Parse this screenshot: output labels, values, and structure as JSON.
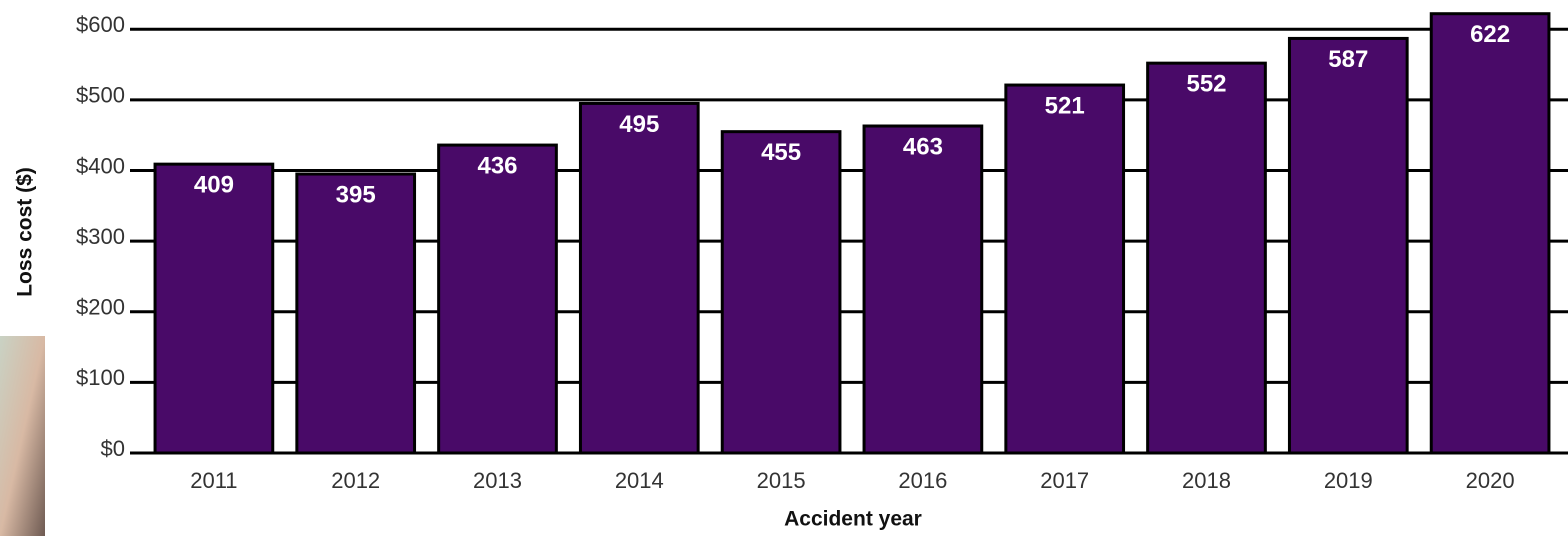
{
  "chart_data": {
    "type": "bar",
    "x_label": "Accident year",
    "y_label": "Loss cost ($)",
    "categories": [
      "2011",
      "2012",
      "2013",
      "2014",
      "2015",
      "2016",
      "2017",
      "2018",
      "2019",
      "2020"
    ],
    "values": [
      409,
      395,
      436,
      495,
      455,
      463,
      521,
      552,
      587,
      622
    ],
    "color": "#490a68",
    "ylim": [
      0,
      640
    ],
    "yticks": [
      {
        "value": 0,
        "label": "$0"
      },
      {
        "value": 100,
        "label": "$100"
      },
      {
        "value": 200,
        "label": "$200"
      },
      {
        "value": 300,
        "label": "$300"
      },
      {
        "value": 400,
        "label": "$400"
      },
      {
        "value": 500,
        "label": "$500"
      },
      {
        "value": 600,
        "label": "$600"
      }
    ],
    "grid": true
  }
}
